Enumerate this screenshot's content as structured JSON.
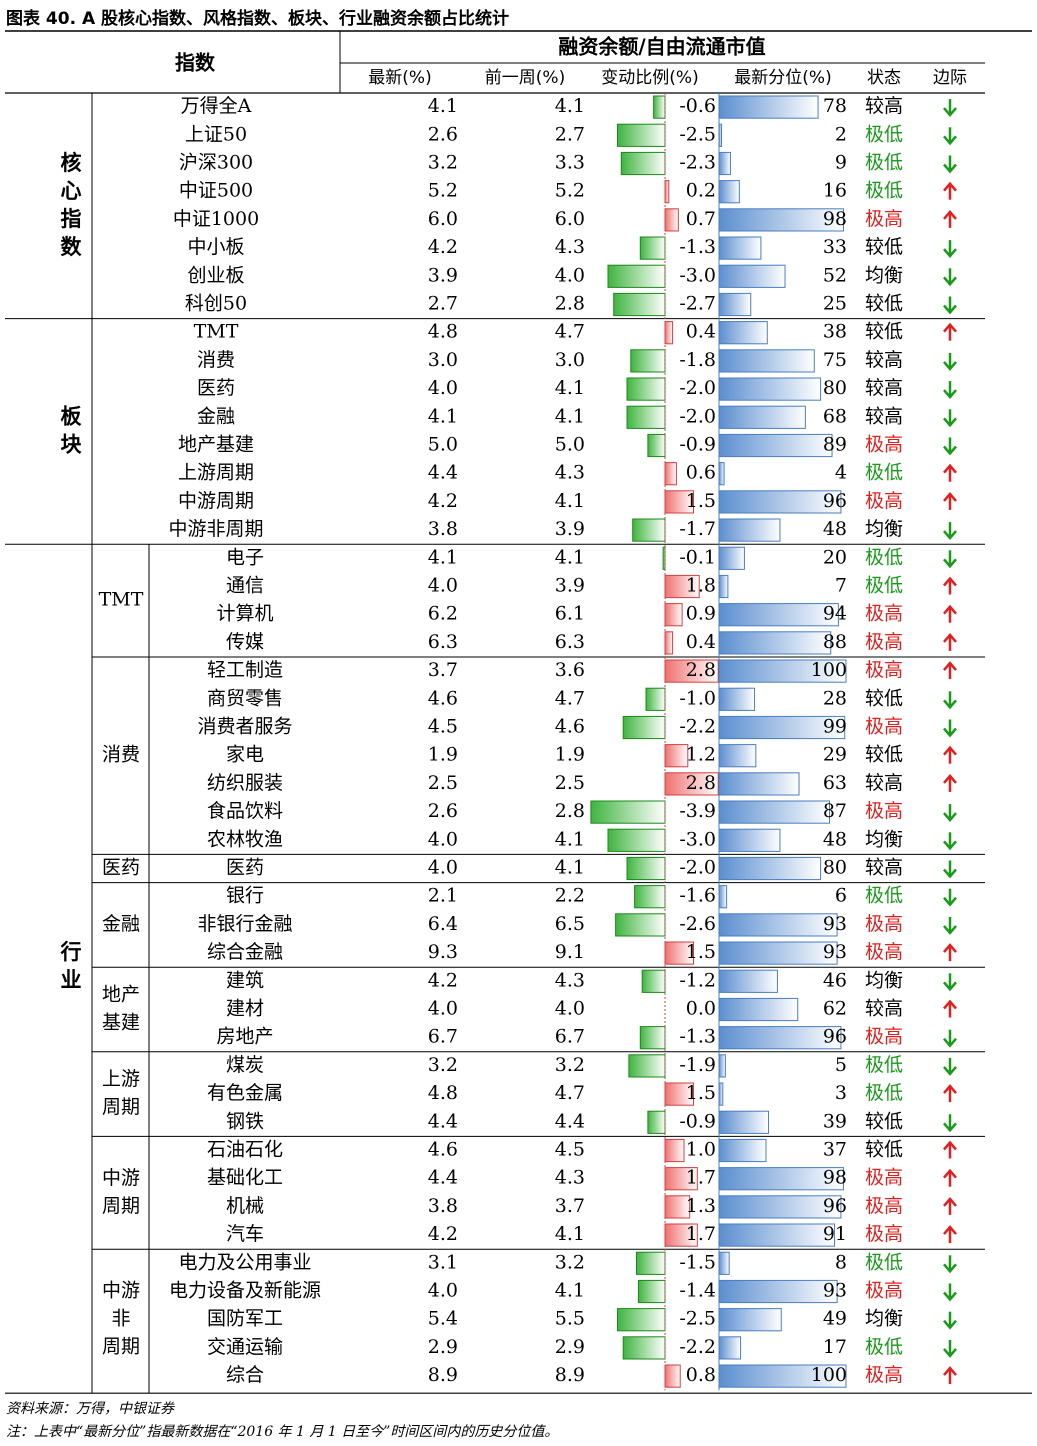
{
  "title": "图表 40. A 股核心指数、风格指数、板块、行业融资余额占比统计",
  "header": {
    "index_col": "指数",
    "group": "融资余额/自由流通市值",
    "cols": [
      "最新(%)",
      "前一周(%)",
      "变动比例(%)",
      "最新分位(%)",
      "状态",
      "边际"
    ]
  },
  "colors": {
    "up": "#e02020",
    "down": "#1a9a1a",
    "bar_red": "#f07070",
    "bar_green": "#3fb43f",
    "bar_blue": "#5b8ed0"
  },
  "icons": {
    "up": "arrow-up-icon",
    "down": "arrow-down-icon"
  },
  "groups": [
    {
      "label": "核\n心\n指\n数",
      "start": 0,
      "count": 8
    },
    {
      "label": "板\n块",
      "start": 8,
      "count": 8
    },
    {
      "label": "行\n业",
      "start": 16,
      "count": 30
    }
  ],
  "subgroups": [
    {
      "label": "TMT",
      "start": 16,
      "count": 4
    },
    {
      "label": "消费",
      "start": 20,
      "count": 7
    },
    {
      "label": "医药",
      "start": 27,
      "count": 1
    },
    {
      "label": "金融",
      "start": 28,
      "count": 3
    },
    {
      "label": "地产\n基建",
      "start": 31,
      "count": 3
    },
    {
      "label": "上游\n周期",
      "start": 34,
      "count": 3
    },
    {
      "label": "中游\n周期",
      "start": 37,
      "count": 4
    },
    {
      "label": "中游\n非\n周期",
      "start": 41,
      "count": 5
    }
  ],
  "rows": [
    [
      "万得全A",
      "4.1",
      "4.1",
      -0.6,
      78,
      "较高",
      "down"
    ],
    [
      "上证50",
      "2.6",
      "2.7",
      -2.5,
      2,
      "极低",
      "down"
    ],
    [
      "沪深300",
      "3.2",
      "3.3",
      -2.3,
      9,
      "极低",
      "down"
    ],
    [
      "中证500",
      "5.2",
      "5.2",
      0.2,
      16,
      "极低",
      "up"
    ],
    [
      "中证1000",
      "6.0",
      "6.0",
      0.7,
      98,
      "极高",
      "up"
    ],
    [
      "中小板",
      "4.2",
      "4.3",
      -1.3,
      33,
      "较低",
      "down"
    ],
    [
      "创业板",
      "3.9",
      "4.0",
      -3.0,
      52,
      "均衡",
      "down"
    ],
    [
      "科创50",
      "2.7",
      "2.8",
      -2.7,
      25,
      "较低",
      "down"
    ],
    [
      "TMT",
      "4.8",
      "4.7",
      0.4,
      38,
      "较低",
      "up"
    ],
    [
      "消费",
      "3.0",
      "3.0",
      -1.8,
      75,
      "较高",
      "down"
    ],
    [
      "医药",
      "4.0",
      "4.1",
      -2.0,
      80,
      "较高",
      "down"
    ],
    [
      "金融",
      "4.1",
      "4.1",
      -2.0,
      68,
      "较高",
      "down"
    ],
    [
      "地产基建",
      "5.0",
      "5.0",
      -0.9,
      89,
      "极高",
      "down"
    ],
    [
      "上游周期",
      "4.4",
      "4.3",
      0.6,
      4,
      "极低",
      "up"
    ],
    [
      "中游周期",
      "4.2",
      "4.1",
      1.5,
      96,
      "极高",
      "up"
    ],
    [
      "中游非周期",
      "3.8",
      "3.9",
      -1.7,
      48,
      "均衡",
      "down"
    ],
    [
      "电子",
      "4.1",
      "4.1",
      -0.1,
      20,
      "极低",
      "down"
    ],
    [
      "通信",
      "4.0",
      "3.9",
      1.8,
      7,
      "极低",
      "up"
    ],
    [
      "计算机",
      "6.2",
      "6.1",
      0.9,
      94,
      "极高",
      "up"
    ],
    [
      "传媒",
      "6.3",
      "6.3",
      0.4,
      88,
      "极高",
      "up"
    ],
    [
      "轻工制造",
      "3.7",
      "3.6",
      2.8,
      100,
      "极高",
      "up"
    ],
    [
      "商贸零售",
      "4.6",
      "4.7",
      -1.0,
      28,
      "较低",
      "down"
    ],
    [
      "消费者服务",
      "4.5",
      "4.6",
      -2.2,
      99,
      "极高",
      "down"
    ],
    [
      "家电",
      "1.9",
      "1.9",
      1.2,
      29,
      "较低",
      "up"
    ],
    [
      "纺织服装",
      "2.5",
      "2.5",
      2.8,
      63,
      "较高",
      "up"
    ],
    [
      "食品饮料",
      "2.6",
      "2.8",
      -3.9,
      87,
      "极高",
      "down"
    ],
    [
      "农林牧渔",
      "4.0",
      "4.1",
      -3.0,
      48,
      "均衡",
      "down"
    ],
    [
      "医药",
      "4.0",
      "4.1",
      -2.0,
      80,
      "较高",
      "down"
    ],
    [
      "银行",
      "2.1",
      "2.2",
      -1.6,
      6,
      "极低",
      "down"
    ],
    [
      "非银行金融",
      "6.4",
      "6.5",
      -2.6,
      93,
      "极高",
      "down"
    ],
    [
      "综合金融",
      "9.3",
      "9.1",
      1.5,
      93,
      "极高",
      "up"
    ],
    [
      "建筑",
      "4.2",
      "4.3",
      -1.2,
      46,
      "均衡",
      "down"
    ],
    [
      "建材",
      "4.0",
      "4.0",
      0.0,
      62,
      "较高",
      "up"
    ],
    [
      "房地产",
      "6.7",
      "6.7",
      -1.3,
      96,
      "极高",
      "down"
    ],
    [
      "煤炭",
      "3.2",
      "3.2",
      -1.9,
      5,
      "极低",
      "down"
    ],
    [
      "有色金属",
      "4.8",
      "4.7",
      1.5,
      3,
      "极低",
      "up"
    ],
    [
      "钢铁",
      "4.4",
      "4.4",
      -0.9,
      39,
      "较低",
      "down"
    ],
    [
      "石油石化",
      "4.6",
      "4.5",
      1.0,
      37,
      "较低",
      "up"
    ],
    [
      "基础化工",
      "4.4",
      "4.3",
      1.7,
      98,
      "极高",
      "up"
    ],
    [
      "机械",
      "3.8",
      "3.7",
      1.3,
      96,
      "极高",
      "up"
    ],
    [
      "汽车",
      "4.2",
      "4.1",
      1.7,
      91,
      "极高",
      "up"
    ],
    [
      "电力及公用事业",
      "3.1",
      "3.2",
      -1.5,
      8,
      "极低",
      "down"
    ],
    [
      "电力设备及新能源",
      "4.0",
      "4.1",
      -1.4,
      93,
      "极高",
      "down"
    ],
    [
      "国防军工",
      "5.4",
      "5.5",
      -2.5,
      49,
      "均衡",
      "down"
    ],
    [
      "交通运输",
      "2.9",
      "2.9",
      -2.2,
      17,
      "极低",
      "down"
    ],
    [
      "综合",
      "8.9",
      "8.9",
      0.8,
      100,
      "极高",
      "up"
    ]
  ],
  "footer": {
    "source": "资料来源：万得，中银证券",
    "note": "注：上表中“最新分位”指最新数据在“2016 年 1 月 1 日至今”时间区间内的历史分位值。"
  }
}
